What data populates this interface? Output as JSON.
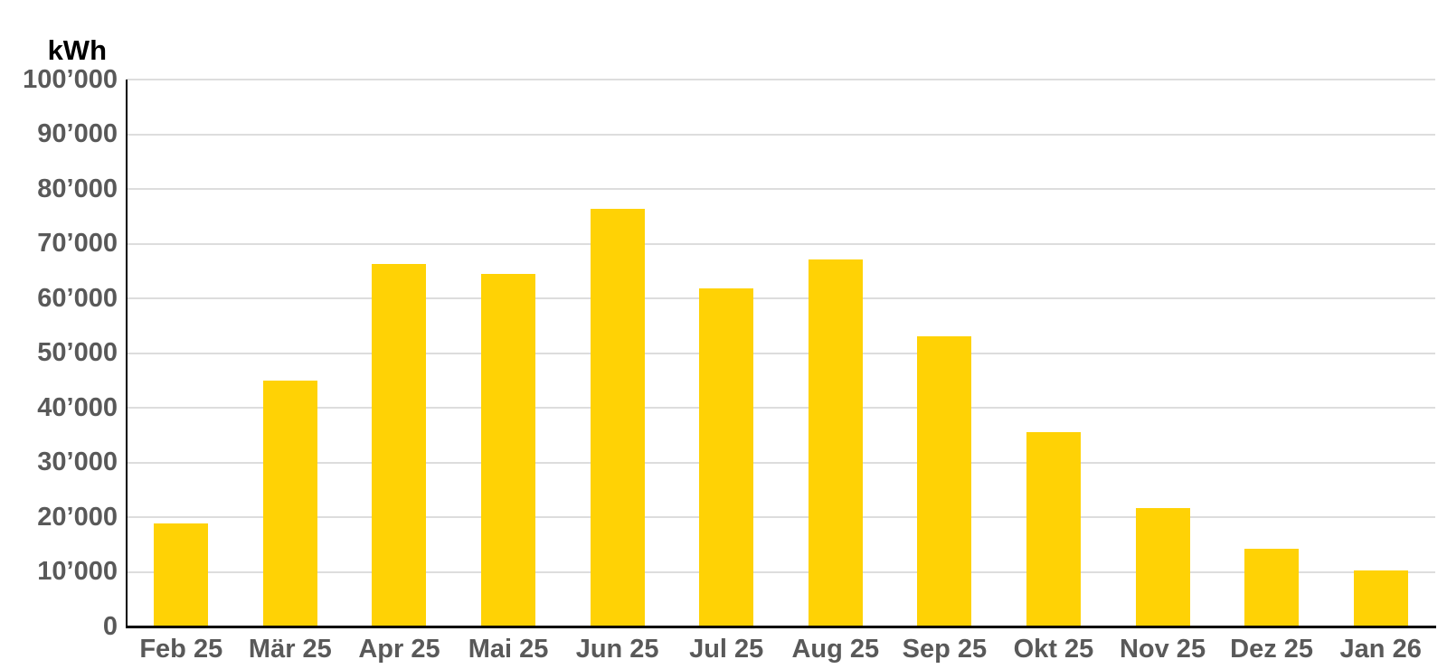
{
  "chart_data": {
    "type": "bar",
    "title": "",
    "unit_label": "kWh",
    "xlabel": "",
    "ylabel": "kWh",
    "ylim": [
      0,
      100000
    ],
    "grid": true,
    "legend": "none",
    "categories": [
      "Feb 25",
      "Mär 25",
      "Apr 25",
      "Mai 25",
      "Jun 25",
      "Jul 25",
      "Aug 25",
      "Sep 25",
      "Okt 25",
      "Nov 25",
      "Dez 25",
      "Jan 26"
    ],
    "values": [
      18800,
      45000,
      66300,
      64500,
      76400,
      61800,
      67100,
      53100,
      35500,
      21700,
      14200,
      10300
    ],
    "yticks": [
      {
        "value": 0,
        "label": "0"
      },
      {
        "value": 10000,
        "label": "10’000"
      },
      {
        "value": 20000,
        "label": "20’000"
      },
      {
        "value": 30000,
        "label": "30’000"
      },
      {
        "value": 40000,
        "label": "40’000"
      },
      {
        "value": 50000,
        "label": "50’000"
      },
      {
        "value": 60000,
        "label": "60’000"
      },
      {
        "value": 70000,
        "label": "70’000"
      },
      {
        "value": 80000,
        "label": "80’000"
      },
      {
        "value": 90000,
        "label": "90’000"
      },
      {
        "value": 100000,
        "label": "100’000"
      }
    ],
    "colors": {
      "bar": "#FFD205",
      "gridline": "#DDDDDD",
      "axis": "#000000",
      "tick_label": "#595959",
      "axis_title": "#000000",
      "background": "#FFFFFF"
    }
  }
}
